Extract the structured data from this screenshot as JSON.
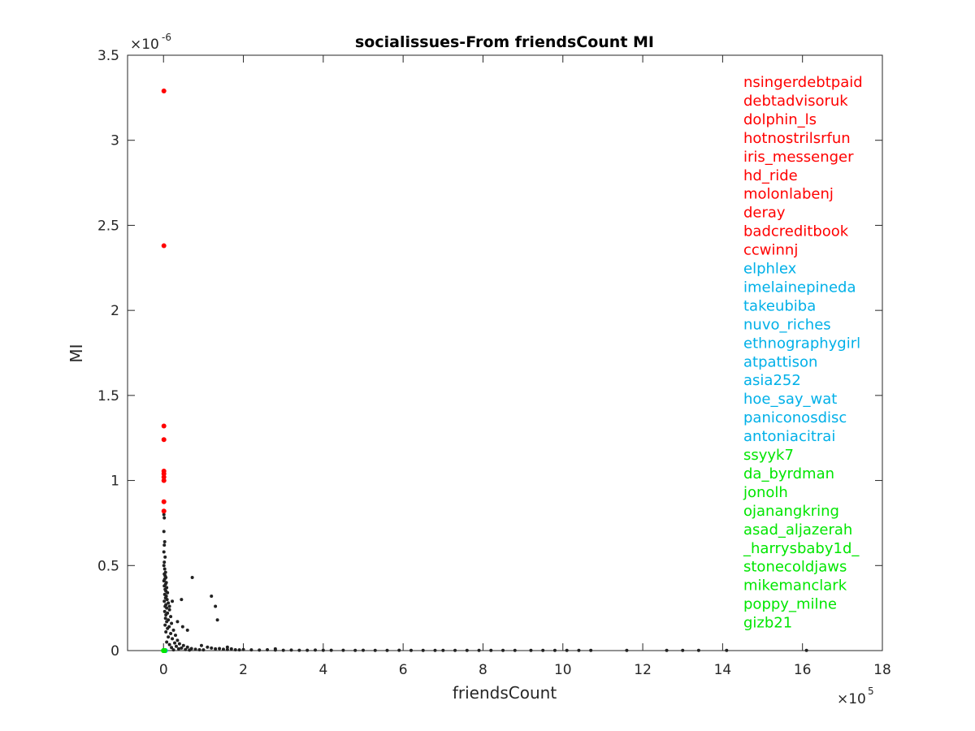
{
  "chart_data": {
    "type": "scatter",
    "title": "socialissues-From friendsCount MI",
    "xlabel": "friendsCount",
    "ylabel": "MI",
    "x_multiplier": {
      "base": "×10",
      "exponent": "5"
    },
    "y_multiplier": {
      "base": "×10",
      "exponent": "-6"
    },
    "xlim": [
      -0.9,
      18
    ],
    "ylim": [
      0,
      3.5
    ],
    "xticks": [
      0,
      2,
      4,
      6,
      8,
      10,
      12,
      14,
      16,
      18
    ],
    "yticks": [
      0,
      0.5,
      1,
      1.5,
      2,
      2.5,
      3,
      3.5
    ],
    "xtick_labels": [
      "0",
      "2",
      "4",
      "6",
      "8",
      "10",
      "12",
      "14",
      "16",
      "18"
    ],
    "ytick_labels": [
      "0",
      "0.5",
      "1",
      "1.5",
      "2",
      "2.5",
      "3",
      "3.5"
    ],
    "grid": false,
    "box": true,
    "colors": {
      "top": "#ff0000",
      "middle": "#00b0e8",
      "bottom": "#00e600",
      "background": "#222222"
    },
    "series": [
      {
        "group": "top",
        "color": "#ff0000",
        "points": [
          [
            0.01,
            3.29
          ],
          [
            0.01,
            2.38
          ],
          [
            0.01,
            1.32
          ],
          [
            0.01,
            1.24
          ],
          [
            0.01,
            1.055
          ],
          [
            0.01,
            1.04
          ],
          [
            0.01,
            1.02
          ],
          [
            0.01,
            1.0
          ],
          [
            0.01,
            0.875
          ],
          [
            0.01,
            0.82
          ]
        ]
      },
      {
        "group": "middle",
        "color": "#00b0e8",
        "points": [
          [
            0.02,
            0.0
          ],
          [
            0.03,
            0.0
          ],
          [
            0.01,
            0.0
          ],
          [
            0.04,
            0.0
          ],
          [
            0.02,
            0.0
          ],
          [
            0.05,
            0.0
          ],
          [
            0.01,
            0.0
          ],
          [
            0.03,
            0.0
          ],
          [
            0.02,
            0.0
          ],
          [
            0.04,
            0.0
          ]
        ]
      },
      {
        "group": "bottom",
        "color": "#00e600",
        "points": [
          [
            0.0,
            0.0
          ],
          [
            0.01,
            0.0
          ],
          [
            0.02,
            0.0
          ],
          [
            0.03,
            0.0
          ],
          [
            0.0,
            0.0
          ],
          [
            0.01,
            0.0
          ],
          [
            0.02,
            0.0
          ],
          [
            0.03,
            0.0
          ],
          [
            0.0,
            0.0
          ],
          [
            0.01,
            0.0
          ]
        ]
      },
      {
        "group": "background",
        "color": "#222222",
        "points": [
          [
            0.01,
            0.8
          ],
          [
            0.02,
            0.78
          ],
          [
            0.01,
            0.7
          ],
          [
            0.03,
            0.64
          ],
          [
            0.02,
            0.62
          ],
          [
            0.01,
            0.58
          ],
          [
            0.04,
            0.55
          ],
          [
            0.02,
            0.52
          ],
          [
            0.01,
            0.5
          ],
          [
            0.03,
            0.48
          ],
          [
            0.05,
            0.46
          ],
          [
            0.02,
            0.45
          ],
          [
            0.04,
            0.44
          ],
          [
            0.06,
            0.43
          ],
          [
            0.03,
            0.42
          ],
          [
            0.01,
            0.41
          ],
          [
            0.07,
            0.4
          ],
          [
            0.05,
            0.39
          ],
          [
            0.02,
            0.38
          ],
          [
            0.08,
            0.37
          ],
          [
            0.04,
            0.36
          ],
          [
            0.06,
            0.35
          ],
          [
            0.1,
            0.34
          ],
          [
            0.03,
            0.33
          ],
          [
            0.07,
            0.32
          ],
          [
            0.05,
            0.31
          ],
          [
            0.09,
            0.3
          ],
          [
            0.02,
            0.29
          ],
          [
            0.12,
            0.28
          ],
          [
            0.06,
            0.27
          ],
          [
            0.04,
            0.26
          ],
          [
            0.08,
            0.25
          ],
          [
            0.15,
            0.24
          ],
          [
            0.03,
            0.23
          ],
          [
            0.1,
            0.22
          ],
          [
            0.06,
            0.21
          ],
          [
            0.18,
            0.2
          ],
          [
            0.05,
            0.19
          ],
          [
            0.12,
            0.18
          ],
          [
            0.08,
            0.17
          ],
          [
            0.2,
            0.16
          ],
          [
            0.04,
            0.15
          ],
          [
            0.14,
            0.14
          ],
          [
            0.1,
            0.13
          ],
          [
            0.25,
            0.12
          ],
          [
            0.06,
            0.11
          ],
          [
            0.18,
            0.1
          ],
          [
            0.3,
            0.09
          ],
          [
            0.12,
            0.08
          ],
          [
            0.22,
            0.07
          ],
          [
            0.35,
            0.06
          ],
          [
            0.08,
            0.05
          ],
          [
            0.28,
            0.045
          ],
          [
            0.4,
            0.04
          ],
          [
            0.15,
            0.035
          ],
          [
            0.5,
            0.03
          ],
          [
            0.32,
            0.025
          ],
          [
            0.6,
            0.02
          ],
          [
            0.2,
            0.018
          ],
          [
            0.45,
            0.015
          ],
          [
            0.7,
            0.012
          ],
          [
            0.38,
            0.01
          ],
          [
            0.8,
            0.008
          ],
          [
            0.55,
            0.006
          ],
          [
            0.9,
            0.005
          ],
          [
            0.25,
            0.004
          ],
          [
            1.0,
            0.004
          ],
          [
            0.65,
            0.003
          ],
          [
            0.72,
            0.43
          ],
          [
            1.2,
            0.32
          ],
          [
            1.3,
            0.26
          ],
          [
            0.45,
            0.3
          ],
          [
            1.35,
            0.18
          ],
          [
            0.22,
            0.29
          ],
          [
            0.15,
            0.26
          ],
          [
            0.48,
            0.14
          ],
          [
            0.6,
            0.12
          ],
          [
            0.35,
            0.17
          ],
          [
            1.1,
            0.02
          ],
          [
            1.2,
            0.015
          ],
          [
            1.3,
            0.01
          ],
          [
            1.4,
            0.012
          ],
          [
            1.5,
            0.008
          ],
          [
            1.6,
            0.006
          ],
          [
            1.7,
            0.01
          ],
          [
            1.8,
            0.005
          ],
          [
            1.9,
            0.004
          ],
          [
            2.0,
            0.006
          ],
          [
            2.2,
            0.004
          ],
          [
            2.4,
            0.003
          ],
          [
            2.6,
            0.005
          ],
          [
            2.8,
            0.003
          ],
          [
            3.0,
            0.002
          ],
          [
            3.2,
            0.003
          ],
          [
            3.4,
            0.002
          ],
          [
            3.6,
            0.002
          ],
          [
            3.8,
            0.003
          ],
          [
            4.0,
            0.002
          ],
          [
            4.2,
            0.002
          ],
          [
            4.5,
            0.002
          ],
          [
            4.8,
            0.001
          ],
          [
            5.0,
            0.002
          ],
          [
            5.3,
            0.001
          ],
          [
            5.6,
            0.001
          ],
          [
            5.9,
            0.002
          ],
          [
            6.2,
            0.001
          ],
          [
            6.5,
            0.001
          ],
          [
            6.8,
            0.001
          ],
          [
            7.0,
            0.001
          ],
          [
            7.3,
            0.001
          ],
          [
            7.6,
            0.001
          ],
          [
            7.9,
            0.001
          ],
          [
            8.2,
            0.001
          ],
          [
            8.5,
            0.001
          ],
          [
            8.8,
            0.001
          ],
          [
            9.2,
            0.001
          ],
          [
            9.5,
            0.001
          ],
          [
            9.8,
            0.001
          ],
          [
            10.1,
            0.001
          ],
          [
            10.4,
            0.001
          ],
          [
            10.7,
            0.001
          ],
          [
            11.6,
            0.001
          ],
          [
            12.6,
            0.001
          ],
          [
            13.0,
            0.001
          ],
          [
            13.4,
            0.001
          ],
          [
            14.1,
            0.001
          ],
          [
            16.1,
            0.001
          ],
          [
            2.8,
            0.01
          ],
          [
            1.6,
            0.02
          ],
          [
            0.95,
            0.03
          ]
        ]
      }
    ],
    "legend": {
      "placement": "right-inside",
      "entries": [
        {
          "label": "nsingerdebtpaid",
          "color": "#ff0000"
        },
        {
          "label": "debtadvisoruk",
          "color": "#ff0000"
        },
        {
          "label": "dolphin_ls",
          "color": "#ff0000"
        },
        {
          "label": "hotnostrilsrfun",
          "color": "#ff0000"
        },
        {
          "label": "iris_messenger",
          "color": "#ff0000"
        },
        {
          "label": "hd_ride",
          "color": "#ff0000"
        },
        {
          "label": "molonlabenj",
          "color": "#ff0000"
        },
        {
          "label": "deray",
          "color": "#ff0000"
        },
        {
          "label": "badcreditbook",
          "color": "#ff0000"
        },
        {
          "label": "ccwinnj",
          "color": "#ff0000"
        },
        {
          "label": "elphlex",
          "color": "#00b0e8"
        },
        {
          "label": "imelainepineda",
          "color": "#00b0e8"
        },
        {
          "label": "takeubiba",
          "color": "#00b0e8"
        },
        {
          "label": "nuvo_riches",
          "color": "#00b0e8"
        },
        {
          "label": "ethnographygirl",
          "color": "#00b0e8"
        },
        {
          "label": "atpattison",
          "color": "#00b0e8"
        },
        {
          "label": "asia252",
          "color": "#00b0e8"
        },
        {
          "label": "hoe_say_wat",
          "color": "#00b0e8"
        },
        {
          "label": "paniconosdisc",
          "color": "#00b0e8"
        },
        {
          "label": "antoniacitrai",
          "color": "#00b0e8"
        },
        {
          "label": "ssyyk7",
          "color": "#00e600"
        },
        {
          "label": "da_byrdman",
          "color": "#00e600"
        },
        {
          "label": "jonolh",
          "color": "#00e600"
        },
        {
          "label": "ojanangkring",
          "color": "#00e600"
        },
        {
          "label": "asad_aljazerah",
          "color": "#00e600"
        },
        {
          "label": "_harrysbaby1d_",
          "color": "#00e600"
        },
        {
          "label": "stonecoldjaws",
          "color": "#00e600"
        },
        {
          "label": "mikemanclark",
          "color": "#00e600"
        },
        {
          "label": "poppy_milne",
          "color": "#00e600"
        },
        {
          "label": "gizb21",
          "color": "#00e600"
        }
      ]
    }
  }
}
